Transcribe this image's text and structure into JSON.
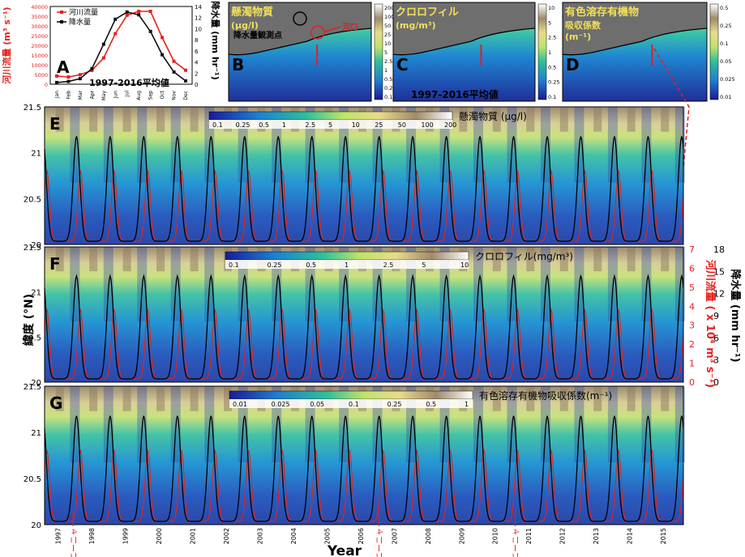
{
  "colors": {
    "river": "#e8201b",
    "rain": "#111111",
    "accent_red": "#e02020"
  },
  "panelA": {
    "letter": "A",
    "legend": [
      "河川流量",
      "降水量"
    ],
    "ylabel_left": "河川流量 (m³ s⁻¹)",
    "ylabel_right": "降水量 (mm hr⁻¹)",
    "note": "1997-2016平均値",
    "months": [
      "Jan",
      "Feb",
      "Mar",
      "Apr",
      "May",
      "Jun",
      "Jul",
      "Aug",
      "Sep",
      "Oct",
      "Nov",
      "Dec"
    ],
    "left_ticks": [
      "0",
      "5000",
      "10000",
      "15000",
      "20000",
      "25000",
      "30000",
      "35000",
      "40000"
    ],
    "right_ticks": [
      "0",
      "2",
      "4",
      "6",
      "8",
      "10",
      "12",
      "14"
    ],
    "river": [
      4200,
      3700,
      4900,
      7100,
      13500,
      26000,
      35500,
      37500,
      37500,
      24000,
      11800,
      7200
    ],
    "rain": [
      0.3,
      0.5,
      1.0,
      2.8,
      7.2,
      11.7,
      13.0,
      12.5,
      9.5,
      5.3,
      2.2,
      0.6
    ]
  },
  "mapPanels": [
    {
      "letter": "B",
      "title1": "懸濁物質",
      "title2": "(μg/l)",
      "ticks": [
        "200",
        "100",
        "50",
        "25",
        "10",
        "5",
        "2.5",
        "1",
        "0.5",
        "0.25",
        "0.1"
      ],
      "label_station": "降水量観測点",
      "label_river": "河口",
      "bottom": ""
    },
    {
      "letter": "C",
      "title1": "クロロフィル",
      "title2": "(mg/m³)",
      "ticks": [
        "10",
        "5",
        "2.5",
        "1",
        "0.5",
        "0.25",
        "0.1"
      ],
      "label_station": "",
      "label_river": "",
      "bottom": "1997-2016平均値"
    },
    {
      "letter": "D",
      "title1": "有色溶存有機物",
      "title2": "吸収係数",
      "title3": "(m⁻¹)",
      "ticks": [
        "0.5",
        "0.25",
        "0.1",
        "0.05",
        "0.025",
        "0.01"
      ],
      "label_station": "",
      "label_river": "",
      "bottom": ""
    }
  ],
  "hovPanels": [
    {
      "letter": "E",
      "title": "懸濁物質 (μg/l)",
      "ticks": [
        "0.1",
        "0.25",
        "0.5",
        "1",
        "2.5",
        "5",
        "10",
        "25",
        "50",
        "100",
        "200"
      ]
    },
    {
      "letter": "F",
      "title": "クロロフィル(mg/m³)",
      "ticks": [
        "0.1",
        "0.25",
        "0.5",
        "1",
        "2.5",
        "5",
        "10"
      ]
    },
    {
      "letter": "G",
      "title": "有色溶存有機物吸収係数(m⁻¹)",
      "ticks": [
        "0.01",
        "0.025",
        "0.05",
        "0.1",
        "0.25",
        "0.5",
        "1"
      ]
    }
  ],
  "yaxis": {
    "label": "緯度 (°N)",
    "ticks": [
      "20",
      "20.5",
      "21",
      "21.5"
    ]
  },
  "right_axes": {
    "river_label": "河川流量 ( x 10⁴ m³ s⁻¹)",
    "river_ticks": [
      "0",
      "1",
      "2",
      "3",
      "4",
      "5",
      "6",
      "7"
    ],
    "rain_label": "降水量 (mm hr⁻¹)",
    "rain_ticks": [
      "0",
      "3",
      "6",
      "9",
      "12",
      "15",
      "18"
    ]
  },
  "xaxis": {
    "label": "Year",
    "years": [
      "1997",
      "1998",
      "1999",
      "2000",
      "2001",
      "2002",
      "2003",
      "2004",
      "2005",
      "2006",
      "2007",
      "2008",
      "2009",
      "2010",
      "2011",
      "2012",
      "2013",
      "2014",
      "2015"
    ]
  },
  "typhoons": [
    "ラニーニャ",
    "ラニーニャ",
    "ラニーニャ"
  ],
  "chart_data": {
    "type": "line",
    "panel": "A",
    "categories": [
      "Jan",
      "Feb",
      "Mar",
      "Apr",
      "May",
      "Jun",
      "Jul",
      "Aug",
      "Sep",
      "Oct",
      "Nov",
      "Dec"
    ],
    "series": [
      {
        "name": "河川流量",
        "values": [
          4200,
          3700,
          4900,
          7100,
          13500,
          26000,
          35500,
          37500,
          37500,
          24000,
          11800,
          7200
        ]
      },
      {
        "name": "降水量",
        "values": [
          0.3,
          0.5,
          1.0,
          2.8,
          7.2,
          11.7,
          13.0,
          12.5,
          9.5,
          5.3,
          2.2,
          0.6
        ]
      }
    ],
    "ylim_left": [
      0,
      40000
    ],
    "ylim_right": [
      0,
      14
    ]
  }
}
